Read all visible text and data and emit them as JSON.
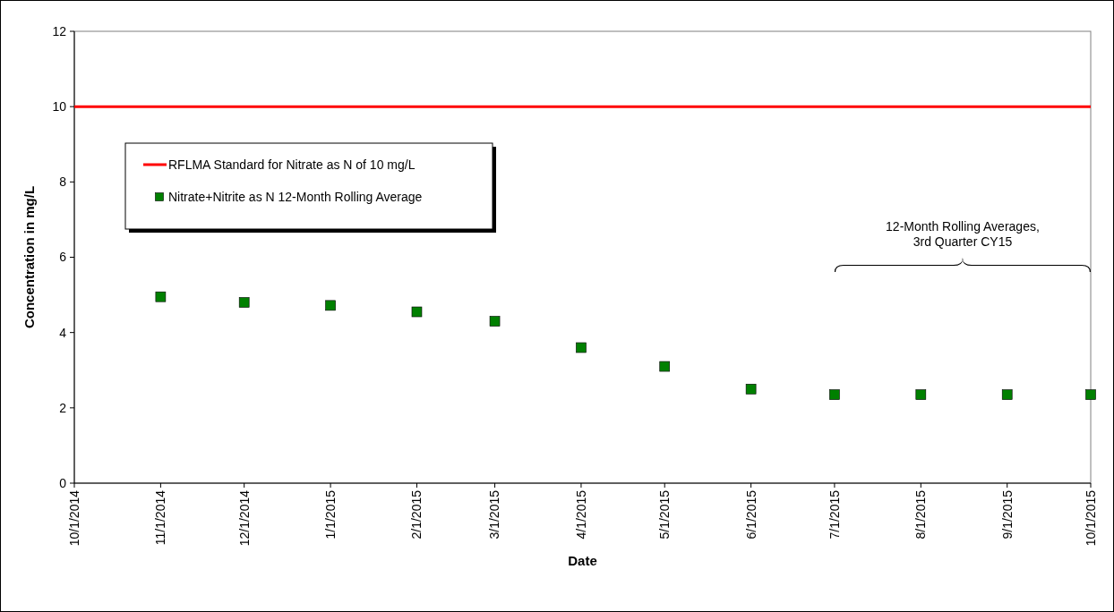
{
  "chart_data": {
    "type": "scatter",
    "xlabel": "Date",
    "ylabel": "Concentration in mg/L",
    "x": [
      "2014-11-01",
      "2014-12-01",
      "2015-01-01",
      "2015-02-01",
      "2015-03-01",
      "2015-04-01",
      "2015-05-01",
      "2015-06-01",
      "2015-07-01",
      "2015-08-01",
      "2015-09-01",
      "2015-10-01"
    ],
    "series": [
      {
        "name": "Nitrate+Nitrite as N 12-Month Rolling Average",
        "color": "#008000",
        "values": [
          4.95,
          4.8,
          4.72,
          4.55,
          4.3,
          3.6,
          3.1,
          2.5,
          2.35,
          2.35,
          2.35,
          2.35
        ]
      }
    ],
    "marker": "square",
    "xlim": [
      "2014-10-01",
      "2015-10-01"
    ],
    "xticks": [
      {
        "value": "2014-10-01",
        "label": "10/1/2014"
      },
      {
        "value": "2014-11-01",
        "label": "11/1/2014"
      },
      {
        "value": "2014-12-01",
        "label": "12/1/2014"
      },
      {
        "value": "2015-01-01",
        "label": "1/1/2015"
      },
      {
        "value": "2015-02-01",
        "label": "2/1/2015"
      },
      {
        "value": "2015-03-01",
        "label": "3/1/2015"
      },
      {
        "value": "2015-04-01",
        "label": "4/1/2015"
      },
      {
        "value": "2015-05-01",
        "label": "5/1/2015"
      },
      {
        "value": "2015-06-01",
        "label": "6/1/2015"
      },
      {
        "value": "2015-07-01",
        "label": "7/1/2015"
      },
      {
        "value": "2015-08-01",
        "label": "8/1/2015"
      },
      {
        "value": "2015-09-01",
        "label": "9/1/2015"
      },
      {
        "value": "2015-10-01",
        "label": "10/1/2015"
      }
    ],
    "ylim": [
      0,
      12
    ],
    "yticks": [
      0,
      2,
      4,
      6,
      8,
      10,
      12
    ],
    "ref_lines": [
      {
        "axis": "y",
        "value": 10,
        "label": "RFLMA Standard for Nitrate as N of 10 mg/L",
        "color": "#ff0000",
        "line_style": "solid"
      }
    ],
    "annotations": [
      "12-Month Rolling Averages,\n3rd Quarter CY15"
    ],
    "legend": "top left"
  }
}
